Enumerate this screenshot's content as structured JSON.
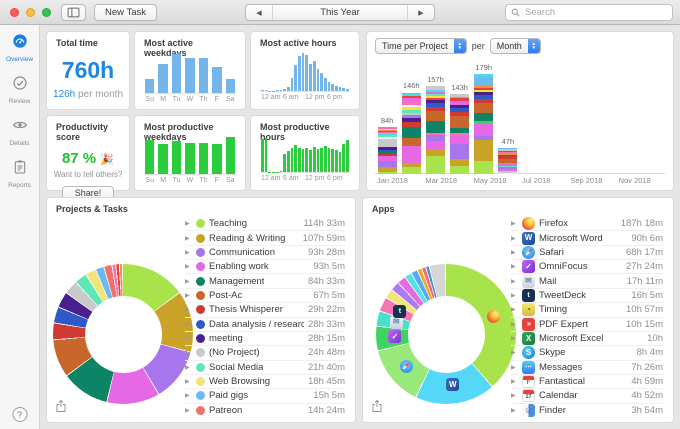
{
  "window": {
    "traffic_lights": [
      "#FC5B57",
      "#FDBE3F",
      "#34C84A"
    ],
    "toolbar": {
      "new_task": "New Task",
      "nav_title": "This Year",
      "search_placeholder": "Search"
    }
  },
  "colors": {
    "accent_blue": "#1E87E5",
    "bar_blue": "#74B6EC",
    "bar_green": "#2BCD3C",
    "score_green": "#1DC22D",
    "selection_blue": "#1B7FE4"
  },
  "sidebar": {
    "items": [
      {
        "id": "overview",
        "label": "Overview",
        "icon": "gauge-icon",
        "active": true
      },
      {
        "id": "review",
        "label": "Review",
        "icon": "check-circle-icon",
        "active": false
      },
      {
        "id": "details",
        "label": "Details",
        "icon": "eye-icon",
        "active": false
      },
      {
        "id": "reports",
        "label": "Reports",
        "icon": "clipboard-icon",
        "active": false
      }
    ],
    "help": "?"
  },
  "cards": {
    "total_time": {
      "title": "Total time",
      "value": "760h",
      "per_value": "126h",
      "per_label": "per month"
    },
    "active_weekdays_title": "Most active weekdays",
    "active_hours_title": "Most active hours",
    "productivity": {
      "title": "Productivity score",
      "score": "87 %",
      "emoji": "🎉",
      "prompt": "Want to tell others?",
      "share": "Share!"
    },
    "productive_weekdays_title": "Most productive weekdays",
    "productive_hours_title": "Most productive hours",
    "project_chart": {
      "mode_select": "Time per Project",
      "per_label": "per",
      "interval_select": "Month"
    },
    "projects": {
      "title": "Projects & Tasks"
    },
    "apps": {
      "title": "Apps"
    }
  },
  "chart_data": {
    "active_weekdays": {
      "type": "bar",
      "title": "Most active weekdays",
      "categories": [
        "Su",
        "M",
        "Tu",
        "W",
        "Th",
        "F",
        "Sa"
      ],
      "values": [
        34,
        72,
        97,
        88,
        88,
        64,
        34
      ],
      "values_unit": "relative %",
      "color": "#74B6EC"
    },
    "active_hours": {
      "type": "bar",
      "title": "Most active hours",
      "x_ticks": [
        "12 am",
        "6 am",
        "12 pm",
        "6 pm"
      ],
      "values": [
        2,
        2,
        1,
        1,
        2,
        3,
        5,
        10,
        35,
        68,
        92,
        100,
        96,
        72,
        80,
        58,
        48,
        35,
        24,
        18,
        14,
        11,
        9,
        5
      ],
      "values_unit": "relative %",
      "color": "#74B6EC"
    },
    "productive_weekdays": {
      "type": "bar",
      "title": "Most productive weekdays",
      "categories": [
        "Su",
        "M",
        "Tu",
        "W",
        "Th",
        "F",
        "Sa"
      ],
      "values": [
        92,
        82,
        88,
        85,
        85,
        82,
        100
      ],
      "values_unit": "relative %",
      "color": "#2BCD3C"
    },
    "productive_hours": {
      "type": "bar",
      "title": "Most productive hours",
      "x_ticks": [
        "12 am",
        "6 am",
        "12 pm",
        "6 pm"
      ],
      "values": [
        95,
        98,
        1,
        1,
        1,
        3,
        52,
        60,
        70,
        78,
        68,
        66,
        70,
        62,
        72,
        66,
        70,
        74,
        70,
        66,
        62,
        58,
        80,
        92
      ],
      "values_unit": "relative %",
      "color": "#2BCD3C"
    },
    "time_per_project": {
      "type": "stacked-bar",
      "title": "Time per Project per Month",
      "unit": "h",
      "months_in_axis": 12,
      "max_total": 179,
      "x_ticks": [
        "Jan 2018",
        "Mar 2018",
        "May 2018",
        "Jul 2018",
        "Sep 2018",
        "Nov 2018"
      ],
      "bars": [
        {
          "month": "Jan 2018",
          "total": 84,
          "label": "84h",
          "segments": [
            [
              "#A9E34B",
              0.05
            ],
            [
              "#C9A227",
              0.09
            ],
            [
              "#A876EC",
              0.13
            ],
            [
              "#E568E5",
              0.12
            ],
            [
              "#CF3A33",
              0.04
            ],
            [
              "#0E8466",
              0.04
            ],
            [
              "#3059C8",
              0.04
            ],
            [
              "#482090",
              0.07
            ],
            [
              "#C9C9C9",
              0.16
            ],
            [
              "#EFEFEF",
              0.05
            ],
            [
              "#5FE8B5",
              0.05
            ],
            [
              "#4FD8E8",
              0.03
            ],
            [
              "#FF6EB4",
              0.03
            ],
            [
              "#E8413C",
              0.02
            ],
            [
              "#F5913C",
              0.02
            ],
            [
              "#F5E33C",
              0.02
            ],
            [
              "#FF6EB4",
              0.04
            ]
          ]
        },
        {
          "month": "Feb 2018",
          "total": 146,
          "label": "146h",
          "segments": [
            [
              "#A9E34B",
              0.08
            ],
            [
              "#C9A227",
              0.05
            ],
            [
              "#E568E5",
              0.21
            ],
            [
              "#C8662B",
              0.1
            ],
            [
              "#0E8466",
              0.14
            ],
            [
              "#CF3A33",
              0.06
            ],
            [
              "#482090",
              0.05
            ],
            [
              "#A876EC",
              0.03
            ],
            [
              "#C9C9C9",
              0.03
            ],
            [
              "#5FE8B5",
              0.04
            ],
            [
              "#F5E33C",
              0.03
            ],
            [
              "#EFEFEF",
              0.03
            ],
            [
              "#FF6EB4",
              0.05
            ],
            [
              "#E568E5",
              0.03
            ],
            [
              "#E8413C",
              0.03
            ],
            [
              "#4FD8E8",
              0.02
            ],
            [
              "#6FB9F2",
              0.02
            ]
          ]
        },
        {
          "month": "Mar 2018",
          "total": 157,
          "label": "157h",
          "segments": [
            [
              "#A9E34B",
              0.2
            ],
            [
              "#C9A227",
              0.08
            ],
            [
              "#E568E5",
              0.1
            ],
            [
              "#A876EC",
              0.06
            ],
            [
              "#FF6EB4",
              0.03
            ],
            [
              "#0E8466",
              0.13
            ],
            [
              "#C8662B",
              0.12
            ],
            [
              "#CF3A33",
              0.05
            ],
            [
              "#3059C8",
              0.04
            ],
            [
              "#482090",
              0.03
            ],
            [
              "#E8413C",
              0.03
            ],
            [
              "#F5E33C",
              0.02
            ],
            [
              "#5FE8B5",
              0.02
            ],
            [
              "#E568E5",
              0.03
            ],
            [
              "#4FD8E8",
              0.02
            ],
            [
              "#C9C9C9",
              0.04
            ]
          ]
        },
        {
          "month": "Apr 2018",
          "total": 143,
          "label": "143h",
          "segments": [
            [
              "#A9E34B",
              0.1
            ],
            [
              "#C9A227",
              0.09
            ],
            [
              "#A876EC",
              0.19
            ],
            [
              "#E568E5",
              0.1
            ],
            [
              "#FF6EB4",
              0.03
            ],
            [
              "#0E8466",
              0.07
            ],
            [
              "#C8662B",
              0.15
            ],
            [
              "#CF3A33",
              0.05
            ],
            [
              "#3059C8",
              0.05
            ],
            [
              "#482090",
              0.04
            ],
            [
              "#E568E5",
              0.03
            ],
            [
              "#3ED45F",
              0.02
            ],
            [
              "#E8413C",
              0.03
            ],
            [
              "#6FB9F2",
              0.02
            ],
            [
              "#C9C9C9",
              0.03
            ]
          ]
        },
        {
          "month": "May 2018",
          "total": 179,
          "label": "179h",
          "segments": [
            [
              "#A9E34B",
              0.13
            ],
            [
              "#C9A227",
              0.21
            ],
            [
              "#A876EC",
              0.04
            ],
            [
              "#E568E5",
              0.13
            ],
            [
              "#3ED45F",
              0.02
            ],
            [
              "#0E8466",
              0.08
            ],
            [
              "#C8662B",
              0.1
            ],
            [
              "#CF3A33",
              0.04
            ],
            [
              "#3059C8",
              0.04
            ],
            [
              "#482090",
              0.03
            ],
            [
              "#F5E33C",
              0.02
            ],
            [
              "#E8413C",
              0.02
            ],
            [
              "#F5913C",
              0.02
            ],
            [
              "#6FB9F2",
              0.09
            ],
            [
              "#4FD8E8",
              0.03
            ]
          ]
        },
        {
          "month": "Jun 2018",
          "total": 47,
          "label": "47h",
          "segments": [
            [
              "#EFEFEF",
              0.05
            ],
            [
              "#C9C9C9",
              0.05
            ],
            [
              "#E568E5",
              0.08
            ],
            [
              "#A876EC",
              0.07
            ],
            [
              "#5FE8B5",
              0.05
            ],
            [
              "#3ED45F",
              0.05
            ],
            [
              "#E568E5",
              0.07
            ],
            [
              "#C8662B",
              0.17
            ],
            [
              "#CF3A33",
              0.09
            ],
            [
              "#0E8466",
              0.05
            ],
            [
              "#C9A227",
              0.05
            ],
            [
              "#FF6EB4",
              0.05
            ],
            [
              "#E8413C",
              0.05
            ],
            [
              "#C9C9C9",
              0.07
            ],
            [
              "#6FB9F2",
              0.05
            ]
          ]
        }
      ]
    },
    "projects_donut": {
      "type": "donut",
      "title": "Projects & Tasks",
      "slices": [
        {
          "name": "Teaching",
          "color": "#A9E34B",
          "duration": "114h 33m",
          "minutes": 6873
        },
        {
          "name": "Reading & Writing",
          "color": "#C9A227",
          "duration": "107h 59m",
          "minutes": 6479
        },
        {
          "name": "Communication",
          "color": "#A876EC",
          "duration": "93h 28m",
          "minutes": 5608
        },
        {
          "name": "Enabling work",
          "color": "#E568E5",
          "duration": "93h 5m",
          "minutes": 5585
        },
        {
          "name": "Management",
          "color": "#0E8466",
          "duration": "84h 33m",
          "minutes": 5073
        },
        {
          "name": "Post-Ac",
          "color": "#C8662B",
          "duration": "67h 5m",
          "minutes": 4025
        },
        {
          "name": "Thesis Whisperer",
          "color": "#CF3A33",
          "duration": "29h 22m",
          "minutes": 1762
        },
        {
          "name": "Data analysis / research",
          "color": "#3059C8",
          "duration": "28h 33m",
          "minutes": 1713
        },
        {
          "name": "meeting",
          "color": "#482090",
          "duration": "28h 15m",
          "minutes": 1695
        },
        {
          "name": "(No Project)",
          "color": "#C9C9C9",
          "duration": "24h 48m",
          "minutes": 1488
        },
        {
          "name": "Social Media",
          "color": "#5FE8B5",
          "duration": "21h 40m",
          "minutes": 1300
        },
        {
          "name": "Web Browsing",
          "color": "#F2E37A",
          "duration": "18h 45m",
          "minutes": 1125
        },
        {
          "name": "Paid gigs",
          "color": "#6FB9F2",
          "duration": "15h 5m",
          "minutes": 905
        },
        {
          "name": "Patreon",
          "color": "#F17168",
          "duration": "14h 24m",
          "minutes": 864
        },
        {
          "name": "",
          "color": "#FF6EB4",
          "minutes": 400
        },
        {
          "name": "",
          "color": "#E8413C",
          "minutes": 365
        },
        {
          "name": "",
          "color": "#F5913C",
          "minutes": 340
        }
      ]
    },
    "apps_donut": {
      "type": "donut",
      "title": "Apps",
      "slices": [
        {
          "name": "Firefox",
          "icon": "firefox",
          "color": "#A9E34B",
          "duration": "187h 18m",
          "minutes": 11238
        },
        {
          "name": "Microsoft Word",
          "icon": "word",
          "color": "#55D7F8",
          "duration": "90h 6m",
          "minutes": 5406
        },
        {
          "name": "Safari",
          "icon": "safari",
          "color": "#98E87A",
          "duration": "68h 17m",
          "minutes": 4097
        },
        {
          "name": "OmniFocus",
          "icon": "omnifocus",
          "color": "#3ED45F",
          "duration": "27h 24m",
          "minutes": 1644
        },
        {
          "name": "Mail",
          "icon": "mail",
          "color": "#47E0C9",
          "duration": "17h 11m",
          "minutes": 1031
        },
        {
          "name": "TweetDeck",
          "icon": "tweetdeck",
          "color": "#F875B5",
          "duration": "16h 5m",
          "minutes": 965
        },
        {
          "name": "Timing",
          "icon": "timing",
          "color": "#F3E477",
          "duration": "10h 57m",
          "minutes": 657
        },
        {
          "name": "PDF Expert",
          "icon": "pdfexpert",
          "color": "#AC7BF0",
          "duration": "10h 15m",
          "minutes": 615
        },
        {
          "name": "Microsoft Excel",
          "icon": "excel",
          "color": "#E46BE0",
          "duration": "10h",
          "minutes": 600
        },
        {
          "name": "Skype",
          "icon": "skype",
          "color": "#52E3E0",
          "duration": "8h 4m",
          "minutes": 484
        },
        {
          "name": "Messages",
          "icon": "messages",
          "color": "#58A8F5",
          "duration": "7h 26m",
          "minutes": 446
        },
        {
          "name": "Fantastical",
          "icon": "fantastical",
          "color": "#F5A623",
          "duration": "4h 59m",
          "minutes": 299
        },
        {
          "name": "Calendar",
          "icon": "calendar",
          "color": "#F56E6E",
          "duration": "4h 52m",
          "minutes": 292
        },
        {
          "name": "Finder",
          "icon": "finder",
          "color": "#4A90D9",
          "duration": "3h 54m",
          "minutes": 234
        },
        {
          "name": "",
          "color": "#D6D6D6",
          "minutes": 1100
        }
      ]
    }
  }
}
